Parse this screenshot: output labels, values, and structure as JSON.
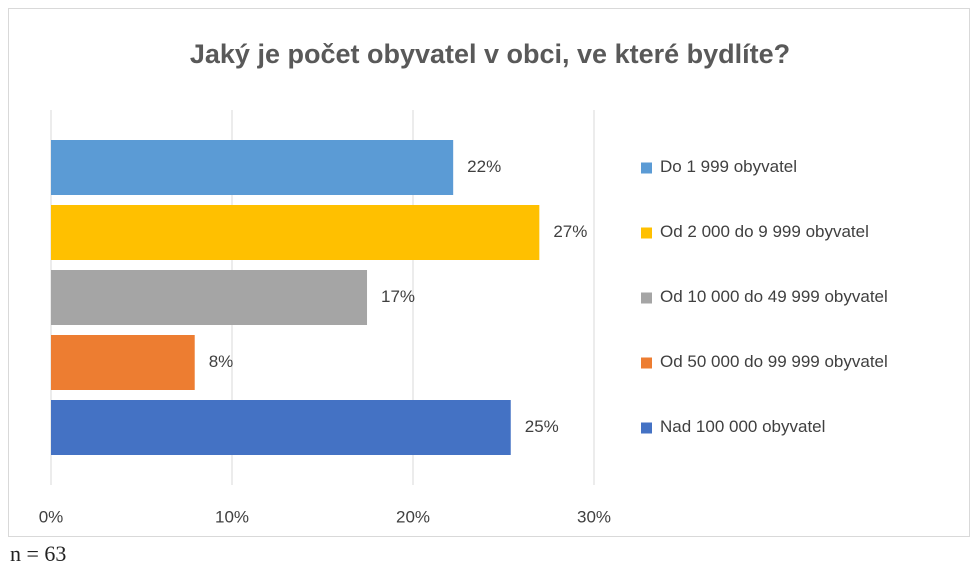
{
  "chart_data": {
    "type": "bar",
    "orientation": "horizontal",
    "title": "Jaký je počet obyvatel v obci, ve které bydlíte?",
    "categories": [
      "Do 1 999 obyvatel",
      "Od 2 000 do 9 999 obyvatel",
      "Od 10 000 do 49 999 obyvatel",
      "Od 50 000 do 99 999 obyvatel",
      "Nad 100 000 obyvatel"
    ],
    "values": [
      22.22,
      26.98,
      17.46,
      7.94,
      25.4
    ],
    "value_labels": [
      "22%",
      "27%",
      "17%",
      "8%",
      "25%"
    ],
    "colors": [
      "#5b9bd5",
      "#ffc000",
      "#a5a5a5",
      "#ed7d31",
      "#4472c4"
    ],
    "xlim": [
      0,
      30
    ],
    "xticks": [
      {
        "value": 0,
        "label": "0%"
      },
      {
        "value": 10,
        "label": "10%"
      },
      {
        "value": 20,
        "label": "20%"
      },
      {
        "value": 30,
        "label": "30%"
      }
    ],
    "grid": true,
    "legend": "right",
    "note": "n = 63"
  }
}
